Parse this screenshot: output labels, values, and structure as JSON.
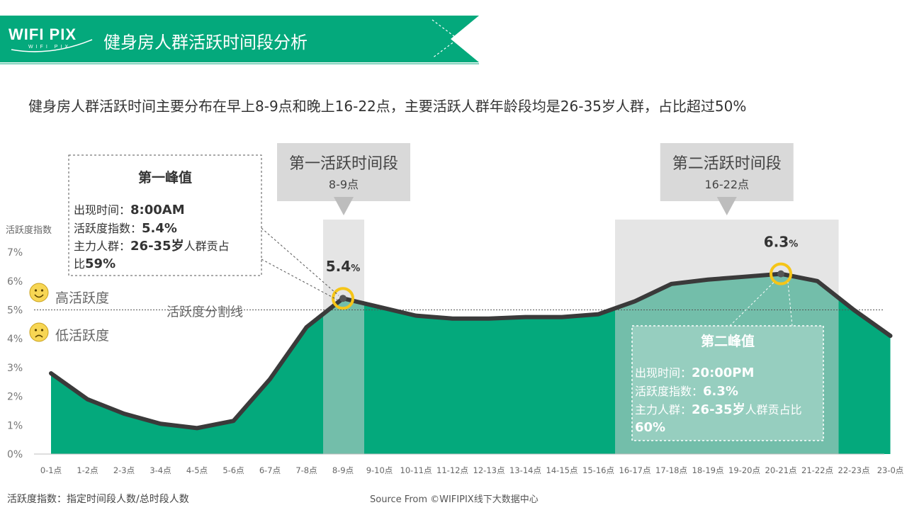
{
  "header": {
    "logo_text": "WIFI PIX",
    "logo_sub": "WIFI PIX",
    "title": "健身房人群活跃时间段分析",
    "brand_color": "#04a97c"
  },
  "subtitle": "健身房人群活跃时间主要分布在早上8-9点和晚上16-22点，主要活跃人群年龄段均是26-35岁人群，占比超过50%",
  "legend": {
    "high": "高活跃度",
    "low": "低活跃度",
    "high_icon": "smile-face-icon",
    "low_icon": "sad-face-icon"
  },
  "divider_label": "活跃度分割线",
  "periods": [
    {
      "title": "第一活跃时间段",
      "range": "8-9点",
      "from": "8-9点",
      "to": "8-9点"
    },
    {
      "title": "第二活跃时间段",
      "range": "16-22点",
      "from": "16-17点",
      "to": "21-22点"
    }
  ],
  "peaks": [
    {
      "title": "第一峰值",
      "time_label": "出现时间：",
      "time_value": "8:00AM",
      "index_label": "活跃度指数：",
      "index_value": "5.4%",
      "group_label": "主力人群：",
      "group_value": "26-35岁",
      "group_suffix": "人群贡占",
      "group_line2_prefix": "比",
      "share_value": "59%",
      "value_label": "5.4",
      "value_unit": "%"
    },
    {
      "title": "第二峰值",
      "time_label": "出现时间：",
      "time_value": "20:00PM",
      "index_label": "活跃度指数：",
      "index_value": "6.3%",
      "group_label": "主力人群：",
      "group_value": "26-35岁",
      "group_suffix": "人群贡占比",
      "share_value": "60%",
      "value_label": "6.3",
      "value_unit": "%"
    }
  ],
  "footer": {
    "note": "活跃度指数：指定时间段人数/总时段人数",
    "source": "Source From ©WIFIPIX线下大数据中心"
  },
  "chart_data": {
    "type": "area",
    "ylabel": "活跃度指数",
    "ylim": [
      0,
      7
    ],
    "yticks": [
      "0%",
      "1%",
      "2%",
      "3%",
      "4%",
      "5%",
      "6%",
      "7%"
    ],
    "threshold": 5.0,
    "categories": [
      "0-1点",
      "1-2点",
      "2-3点",
      "3-4点",
      "4-5点",
      "5-6点",
      "6-7点",
      "7-8点",
      "8-9点",
      "9-10点",
      "10-11点",
      "11-12点",
      "12-13点",
      "13-14点",
      "14-15点",
      "15-16点",
      "16-17点",
      "17-18点",
      "18-19点",
      "19-20点",
      "20-21点",
      "21-22点",
      "22-23点",
      "23-0点"
    ],
    "values": [
      2.8,
      1.9,
      1.4,
      1.05,
      0.9,
      1.15,
      2.6,
      4.4,
      5.4,
      5.1,
      4.8,
      4.7,
      4.7,
      4.75,
      4.75,
      4.85,
      5.3,
      5.9,
      6.05,
      6.15,
      6.25,
      6.0,
      5.0,
      4.1
    ],
    "peak_indices": [
      8,
      20
    ],
    "area_color": "#04a97c",
    "line_color": "#3a3a3a",
    "highlight_color": "#f5c518"
  }
}
